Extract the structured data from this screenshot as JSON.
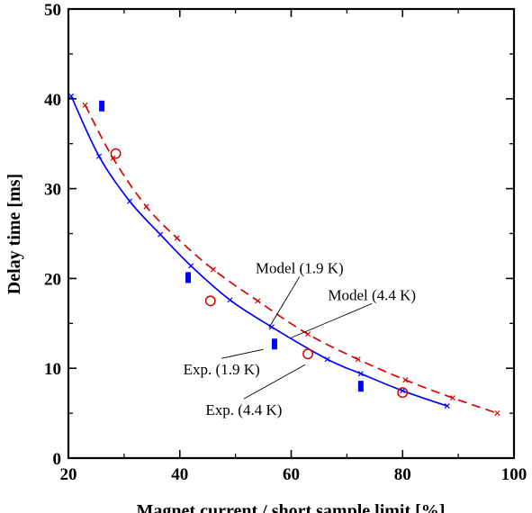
{
  "chart_data": {
    "type": "scatter",
    "title": "",
    "xlabel": "Magnet current / short sample limit [%]",
    "ylabel": "Delay time [ms]",
    "xlim": [
      20,
      100
    ],
    "ylim": [
      0,
      50
    ],
    "xticks": [
      20,
      40,
      60,
      80,
      100
    ],
    "yticks": [
      0,
      10,
      20,
      30,
      40,
      50
    ],
    "grid": false,
    "series": [
      {
        "name": "Model (1.9 K)",
        "kind": "line",
        "style": "solid",
        "marker": "x",
        "color": "#0000ff",
        "x": [
          20.5,
          25.5,
          31,
          36.5,
          42,
          49,
          56.5,
          66.5,
          72.5,
          80,
          88
        ],
        "y": [
          40.3,
          33.6,
          28.6,
          24.9,
          21.4,
          17.6,
          14.6,
          11.0,
          9.4,
          7.5,
          5.8
        ]
      },
      {
        "name": "Model (4.4 K)",
        "kind": "line",
        "style": "dashed",
        "marker": "x",
        "color": "#dd0000",
        "x": [
          23,
          28,
          34,
          39.5,
          46,
          54,
          63,
          72,
          80.5,
          89,
          97
        ],
        "y": [
          39.3,
          33.4,
          28.0,
          24.5,
          21.0,
          17.5,
          13.8,
          11.0,
          8.7,
          6.7,
          5.0
        ]
      },
      {
        "name": "Exp. (1.9 K)",
        "kind": "scatter",
        "marker": "rect",
        "color": "#0000ff",
        "x": [
          26,
          41.5,
          57,
          72.5
        ],
        "y": [
          39.2,
          20.1,
          12.7,
          8.0
        ]
      },
      {
        "name": "Exp. (4.4 K)",
        "kind": "scatter",
        "marker": "circle",
        "color": "#dd0000",
        "x": [
          28.5,
          45.5,
          63,
          80
        ],
        "y": [
          33.9,
          17.5,
          11.6,
          7.3
        ]
      }
    ],
    "annotations": [
      {
        "text": "Model (1.9 K)",
        "label_x": 61.5,
        "label_y": 21.2,
        "pointer_x": 56,
        "pointer_y": 14.5
      },
      {
        "text": "Model (4.4 K)",
        "label_x": 74.5,
        "label_y": 18.2,
        "pointer_x": 60,
        "pointer_y": 13.4
      },
      {
        "text": "Exp. (1.9 K)",
        "label_x": 47.5,
        "label_y": 9.9,
        "pointer_x": 55,
        "pointer_y": 12.1
      },
      {
        "text": "Exp. (4.4 K)",
        "label_x": 51.5,
        "label_y": 5.4,
        "pointer_x": 62.5,
        "pointer_y": 10.4
      }
    ]
  }
}
